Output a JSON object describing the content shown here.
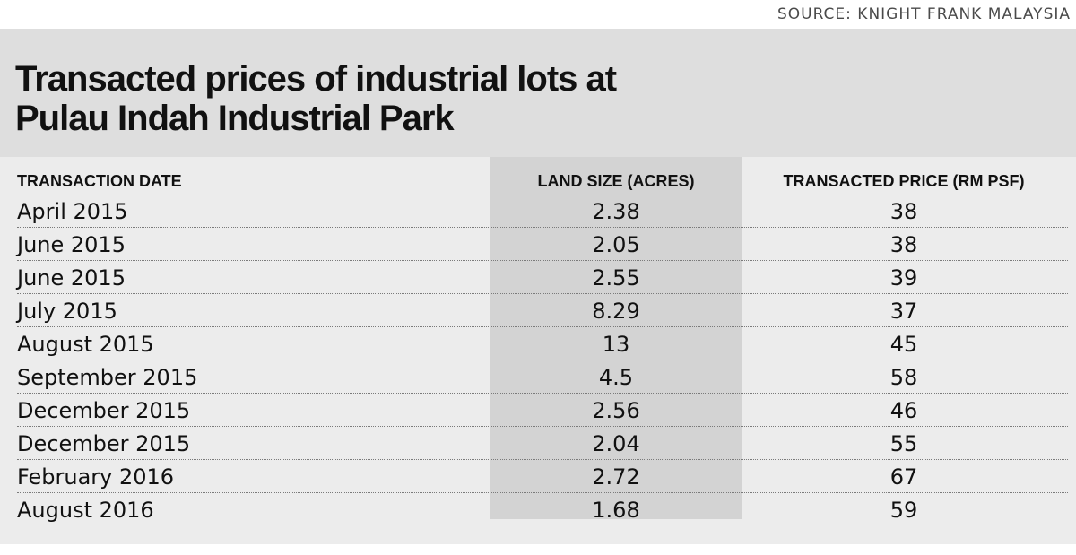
{
  "source": "SOURCE: KNIGHT FRANK MALAYSIA",
  "title_line1": "Transacted prices of industrial lots at",
  "title_line2": "Pulau Indah Industrial Park",
  "chart_data": {
    "type": "table",
    "title": "Transacted prices of industrial lots at Pulau Indah Industrial Park",
    "source": "SOURCE: KNIGHT FRANK MALAYSIA",
    "columns": [
      "TRANSACTION DATE",
      "LAND SIZE (ACRES)",
      "TRANSACTED PRICE (RM PSF)"
    ],
    "rows": [
      [
        "April 2015",
        "2.38",
        "38"
      ],
      [
        "June 2015",
        "2.05",
        "38"
      ],
      [
        "June 2015",
        "2.55",
        "39"
      ],
      [
        "July 2015",
        "8.29",
        "37"
      ],
      [
        "August 2015",
        "13",
        "45"
      ],
      [
        "September 2015",
        "4.5",
        "58"
      ],
      [
        "December 2015",
        "2.56",
        "46"
      ],
      [
        "December 2015",
        "2.04",
        "55"
      ],
      [
        "February 2016",
        "2.72",
        "67"
      ],
      [
        "August 2016",
        "1.68",
        "59"
      ]
    ]
  },
  "colors": {
    "panel_background": "#ececec",
    "title_band": "#dedede",
    "shaded_column": "#d3d3d3",
    "text": "#111111"
  }
}
